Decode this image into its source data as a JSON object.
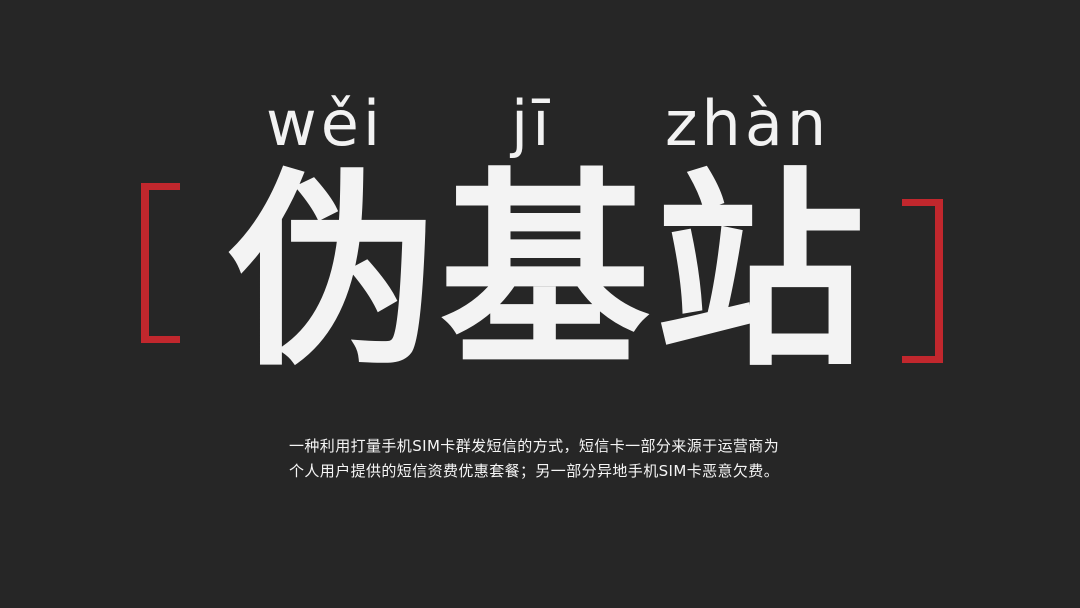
{
  "slide": {
    "pinyin": [
      "wěi",
      "jī",
      "zhàn"
    ],
    "title_chars": [
      "伪",
      "基",
      "站"
    ],
    "description": [
      "一种利用打量手机SIM卡群发短信的方式，短信卡一部分来源于运营商为",
      "个人用户提供的短信资费优惠套餐；另一部分异地手机SIM卡恶意欠费。"
    ],
    "colors": {
      "background": "#262626",
      "text": "#f3f3f3",
      "accent": "#c1272d"
    }
  }
}
